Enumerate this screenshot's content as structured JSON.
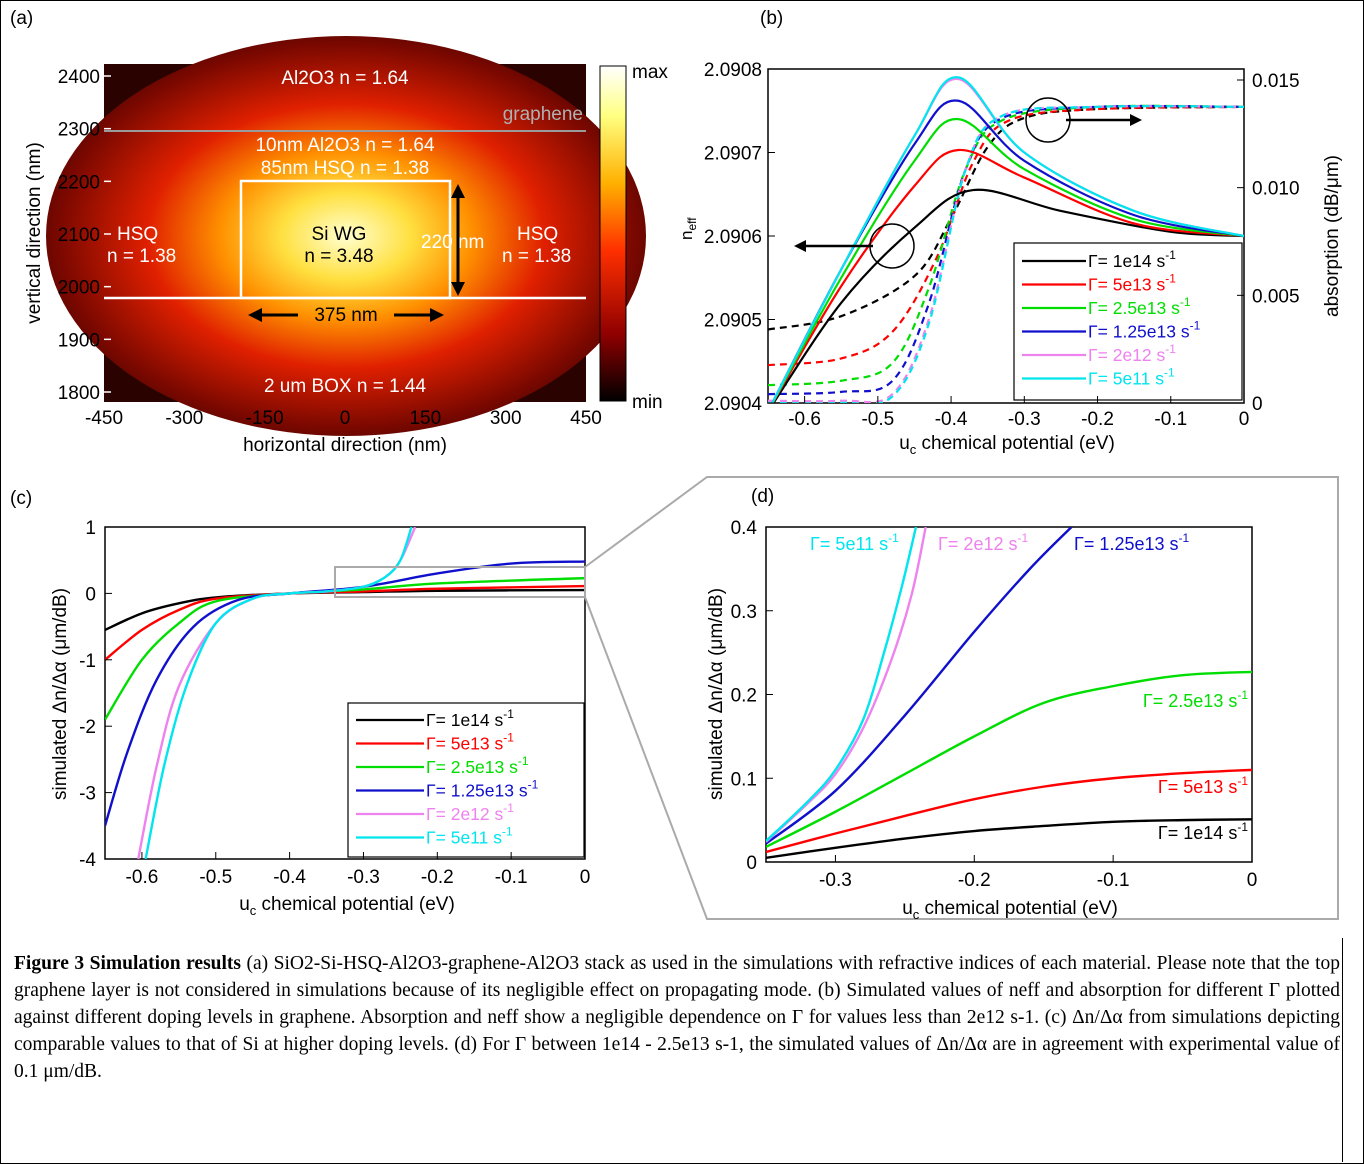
{
  "panels": {
    "a": {
      "tag": "(a)",
      "ylabel": "vertical direction (nm)",
      "xlabel": "horizontal direction (nm)",
      "yticks": [
        "2400",
        "2300",
        "2200",
        "2100",
        "2000",
        "1900",
        "1800"
      ],
      "xticks": [
        "-450",
        "-300",
        "-150",
        "0",
        "150",
        "300",
        "450"
      ],
      "colorbar": {
        "max": "max",
        "min": "min"
      },
      "labels": {
        "top_al2o3": "Al2O3 n = 1.64",
        "graphene": "graphene",
        "al2o3_10nm": "10nm Al2O3 n = 1.64",
        "hsq_85nm": "85nm HSQ n = 1.38",
        "hsq_left_1": "HSQ",
        "hsq_left_2": "n = 1.38",
        "hsq_right_1": "HSQ",
        "hsq_right_2": "n = 1.38",
        "si_wg_1": "Si WG",
        "si_wg_2": "n = 3.48",
        "height": "220 nm",
        "width": "375 nm",
        "box": "2 um BOX n = 1.44"
      }
    },
    "b": {
      "tag": "(b)",
      "yleft_label": "neff",
      "yright_label": "absorption (dB/μm)",
      "xlabel": "uc chemical potential (eV)",
      "yleft_ticks": [
        "2.0908",
        "2.0907",
        "2.0906",
        "2.0905",
        "2.0904"
      ],
      "yright_ticks": [
        "0.015",
        "0.010",
        "0.005",
        "0"
      ],
      "xticks": [
        "-0.6",
        "-0.5",
        "-0.4",
        "-0.3",
        "-0.2",
        "-0.1",
        "0"
      ]
    },
    "c": {
      "tag": "(c)",
      "ylabel": "simulated Δn/Δα (μm/dB)",
      "xlabel": "uc chemical potential (eV)",
      "yticks": [
        "1",
        "0",
        "-1",
        "-2",
        "-3",
        "-4"
      ],
      "xticks": [
        "-0.6",
        "-0.5",
        "-0.4",
        "-0.3",
        "-0.2",
        "-0.1",
        "0"
      ]
    },
    "d": {
      "tag": "(d)",
      "ylabel": "simulated Δn/Δα (μm/dB)",
      "xlabel": "uc chemical potential (eV)",
      "yticks": [
        "0.4",
        "0.3",
        "0.2",
        "0.1",
        "0"
      ],
      "xticks": [
        "-0.3",
        "-0.2",
        "-0.1",
        "0"
      ]
    }
  },
  "legend": [
    {
      "label": "Γ= 1e14 s-1",
      "color": "#000000"
    },
    {
      "label": "Γ= 5e13 s-1",
      "color": "#ff0000"
    },
    {
      "label": "Γ= 2.5e13 s-1",
      "color": "#00dd00"
    },
    {
      "label": "Γ= 1.25e13 s-1",
      "color": "#1010cc"
    },
    {
      "label": "Γ= 2e12 s-1",
      "color": "#ee82ee"
    },
    {
      "label": "Γ= 5e11 s-1",
      "color": "#00e5ee"
    }
  ],
  "chart_data": [
    {
      "type": "line",
      "panel": "b",
      "series": [
        {
          "name": "Γ= 1e14 s-1",
          "neff": [
            [
              -0.65,
              2.09039
            ],
            [
              -0.55,
              2.09052
            ],
            [
              -0.45,
              2.09061
            ],
            [
              -0.37,
              2.090655
            ],
            [
              -0.25,
              2.09063
            ],
            [
              -0.1,
              2.090605
            ],
            [
              0,
              2.0906
            ]
          ],
          "absorption": [
            [
              -0.65,
              0.0033
            ],
            [
              -0.55,
              0.0039
            ],
            [
              -0.45,
              0.0057
            ],
            [
              -0.4,
              0.0083
            ],
            [
              -0.35,
              0.0115
            ],
            [
              -0.3,
              0.0128
            ],
            [
              -0.2,
              0.0132
            ],
            [
              0,
              0.0133
            ]
          ]
        },
        {
          "name": "Γ= 5e13 s-1",
          "neff": [
            [
              -0.65,
              2.09039
            ],
            [
              -0.55,
              2.09054
            ],
            [
              -0.45,
              2.09066
            ],
            [
              -0.39,
              2.090703
            ],
            [
              -0.3,
              2.09067
            ],
            [
              -0.15,
              2.090615
            ],
            [
              0,
              2.0906
            ]
          ],
          "absorption": [
            [
              -0.65,
              0.0017
            ],
            [
              -0.55,
              0.002
            ],
            [
              -0.48,
              0.0032
            ],
            [
              -0.42,
              0.0065
            ],
            [
              -0.37,
              0.0108
            ],
            [
              -0.32,
              0.0127
            ],
            [
              -0.2,
              0.0132
            ],
            [
              0,
              0.0133
            ]
          ]
        },
        {
          "name": "Γ= 2.5e13 s-1",
          "neff": [
            [
              -0.65,
              2.09039
            ],
            [
              -0.55,
              2.09055
            ],
            [
              -0.45,
              2.09069
            ],
            [
              -0.39,
              2.09074
            ],
            [
              -0.3,
              2.09068
            ],
            [
              -0.15,
              2.09062
            ],
            [
              0,
              2.0906
            ]
          ],
          "absorption": [
            [
              -0.65,
              0.0008
            ],
            [
              -0.55,
              0.001
            ],
            [
              -0.48,
              0.0018
            ],
            [
              -0.43,
              0.0052
            ],
            [
              -0.38,
              0.0105
            ],
            [
              -0.33,
              0.0127
            ],
            [
              -0.2,
              0.0133
            ],
            [
              0,
              0.0133
            ]
          ]
        },
        {
          "name": "Γ= 1.25e13 s-1",
          "neff": [
            [
              -0.65,
              2.09039
            ],
            [
              -0.55,
              2.09056
            ],
            [
              -0.45,
              2.09071
            ],
            [
              -0.39,
              2.090762
            ],
            [
              -0.3,
              2.09069
            ],
            [
              -0.15,
              2.090625
            ],
            [
              0,
              2.0906
            ]
          ],
          "absorption": [
            [
              -0.65,
              0.0004
            ],
            [
              -0.55,
              0.0005
            ],
            [
              -0.48,
              0.001
            ],
            [
              -0.43,
              0.0045
            ],
            [
              -0.38,
              0.0105
            ],
            [
              -0.33,
              0.0128
            ],
            [
              -0.2,
              0.0133
            ],
            [
              0,
              0.0133
            ]
          ]
        },
        {
          "name": "Γ= 2e12 s-1",
          "neff": [
            [
              -0.65,
              2.09039
            ],
            [
              -0.55,
              2.09056
            ],
            [
              -0.45,
              2.09072
            ],
            [
              -0.39,
              2.090788
            ],
            [
              -0.3,
              2.0907
            ],
            [
              -0.15,
              2.09063
            ],
            [
              0,
              2.0906
            ]
          ],
          "absorption": [
            [
              -0.65,
              0.0001
            ],
            [
              -0.55,
              0.0001
            ],
            [
              -0.48,
              0.0004
            ],
            [
              -0.43,
              0.0038
            ],
            [
              -0.38,
              0.0105
            ],
            [
              -0.33,
              0.0129
            ],
            [
              -0.2,
              0.0133
            ],
            [
              0,
              0.0133
            ]
          ]
        },
        {
          "name": "Γ= 5e11 s-1",
          "neff": [
            [
              -0.65,
              2.09039
            ],
            [
              -0.55,
              2.09056
            ],
            [
              -0.45,
              2.09072
            ],
            [
              -0.39,
              2.09079
            ],
            [
              -0.3,
              2.0907
            ],
            [
              -0.15,
              2.09063
            ],
            [
              0,
              2.0906
            ]
          ],
          "absorption": [
            [
              -0.65,
              0.0
            ],
            [
              -0.55,
              0.0
            ],
            [
              -0.48,
              0.0003
            ],
            [
              -0.43,
              0.0036
            ],
            [
              -0.38,
              0.0105
            ],
            [
              -0.33,
              0.0129
            ],
            [
              -0.2,
              0.0133
            ],
            [
              0,
              0.0133
            ]
          ]
        }
      ],
      "xlim": [
        -0.65,
        0
      ],
      "ylim_left": [
        2.0904,
        2.0908
      ],
      "ylim_right": [
        0,
        0.015
      ]
    },
    {
      "type": "line",
      "panel": "c",
      "series": [
        {
          "name": "Γ= 1e14 s-1",
          "points": [
            [
              -0.65,
              -0.55
            ],
            [
              -0.6,
              -0.3
            ],
            [
              -0.55,
              -0.15
            ],
            [
              -0.5,
              -0.06
            ],
            [
              -0.4,
              0
            ],
            [
              -0.3,
              0.02
            ],
            [
              -0.2,
              0.04
            ],
            [
              0,
              0.05
            ]
          ]
        },
        {
          "name": "Γ= 5e13 s-1",
          "points": [
            [
              -0.65,
              -1.0
            ],
            [
              -0.6,
              -0.55
            ],
            [
              -0.55,
              -0.25
            ],
            [
              -0.5,
              -0.08
            ],
            [
              -0.4,
              0
            ],
            [
              -0.3,
              0.03
            ],
            [
              -0.2,
              0.07
            ],
            [
              0,
              0.11
            ]
          ]
        },
        {
          "name": "Γ= 2.5e13 s-1",
          "points": [
            [
              -0.65,
              -1.9
            ],
            [
              -0.6,
              -1.0
            ],
            [
              -0.55,
              -0.45
            ],
            [
              -0.5,
              -0.12
            ],
            [
              -0.4,
              0
            ],
            [
              -0.3,
              0.06
            ],
            [
              -0.2,
              0.15
            ],
            [
              0,
              0.23
            ]
          ]
        },
        {
          "name": "Γ= 1.25e13 s-1",
          "points": [
            [
              -0.65,
              -3.5
            ],
            [
              -0.62,
              -2.4
            ],
            [
              -0.58,
              -1.3
            ],
            [
              -0.53,
              -0.5
            ],
            [
              -0.47,
              -0.1
            ],
            [
              -0.4,
              0
            ],
            [
              -0.3,
              0.1
            ],
            [
              -0.2,
              0.3
            ],
            [
              -0.1,
              0.45
            ],
            [
              0,
              0.48
            ]
          ]
        },
        {
          "name": "Γ= 2e12 s-1",
          "points": [
            [
              -0.605,
              -4.0
            ],
            [
              -0.58,
              -2.6
            ],
            [
              -0.55,
              -1.4
            ],
            [
              -0.5,
              -0.45
            ],
            [
              -0.45,
              -0.08
            ],
            [
              -0.4,
              0
            ],
            [
              -0.35,
              0.03
            ],
            [
              -0.3,
              0.1
            ],
            [
              -0.27,
              0.25
            ],
            [
              -0.25,
              0.5
            ],
            [
              -0.23,
              1.0
            ]
          ]
        },
        {
          "name": "Γ= 5e11 s-1",
          "points": [
            [
              -0.595,
              -4.0
            ],
            [
              -0.57,
              -2.6
            ],
            [
              -0.54,
              -1.4
            ],
            [
              -0.5,
              -0.45
            ],
            [
              -0.45,
              -0.08
            ],
            [
              -0.4,
              0
            ],
            [
              -0.35,
              0.03
            ],
            [
              -0.3,
              0.1
            ],
            [
              -0.27,
              0.25
            ],
            [
              -0.25,
              0.5
            ],
            [
              -0.235,
              1.0
            ]
          ]
        }
      ],
      "xlim": [
        -0.65,
        0
      ],
      "ylim": [
        -4,
        1
      ]
    },
    {
      "type": "line",
      "panel": "d",
      "series": [
        {
          "name": "Γ= 1e14 s-1",
          "points": [
            [
              -0.35,
              0.005
            ],
            [
              -0.3,
              0.017
            ],
            [
              -0.25,
              0.028
            ],
            [
              -0.2,
              0.037
            ],
            [
              -0.15,
              0.043
            ],
            [
              -0.1,
              0.048
            ],
            [
              -0.05,
              0.05
            ],
            [
              0,
              0.051
            ]
          ]
        },
        {
          "name": "Γ= 5e13 s-1",
          "points": [
            [
              -0.35,
              0.012
            ],
            [
              -0.3,
              0.034
            ],
            [
              -0.25,
              0.055
            ],
            [
              -0.2,
              0.075
            ],
            [
              -0.15,
              0.09
            ],
            [
              -0.1,
              0.1
            ],
            [
              -0.05,
              0.106
            ],
            [
              0,
              0.11
            ]
          ]
        },
        {
          "name": "Γ= 2.5e13 s-1",
          "points": [
            [
              -0.35,
              0.018
            ],
            [
              -0.3,
              0.06
            ],
            [
              -0.25,
              0.105
            ],
            [
              -0.2,
              0.15
            ],
            [
              -0.15,
              0.19
            ],
            [
              -0.1,
              0.21
            ],
            [
              -0.05,
              0.223
            ],
            [
              0,
              0.227
            ]
          ]
        },
        {
          "name": "Γ= 1.25e13 s-1",
          "points": [
            [
              -0.35,
              0.022
            ],
            [
              -0.3,
              0.085
            ],
            [
              -0.25,
              0.175
            ],
            [
              -0.2,
              0.275
            ],
            [
              -0.16,
              0.35
            ],
            [
              -0.13,
              0.4
            ]
          ]
        },
        {
          "name": "Γ= 2e12 s-1",
          "points": [
            [
              -0.35,
              0.024
            ],
            [
              -0.32,
              0.07
            ],
            [
              -0.3,
              0.105
            ],
            [
              -0.28,
              0.16
            ],
            [
              -0.26,
              0.24
            ],
            [
              -0.245,
              0.32
            ],
            [
              -0.235,
              0.4
            ]
          ]
        },
        {
          "name": "Γ= 5e11 s-1",
          "points": [
            [
              -0.35,
              0.025
            ],
            [
              -0.32,
              0.072
            ],
            [
              -0.3,
              0.11
            ],
            [
              -0.28,
              0.17
            ],
            [
              -0.265,
              0.25
            ],
            [
              -0.252,
              0.33
            ],
            [
              -0.242,
              0.4
            ]
          ]
        }
      ],
      "legend_labels": [
        "Γ= 5e11 s-1",
        "Γ= 2e12 s-1",
        "Γ= 1.25e13 s-1",
        "Γ= 2.5e13 s-1",
        "Γ= 5e13 s-1",
        "Γ= 1e14 s-1"
      ],
      "xlim": [
        -0.35,
        0
      ],
      "ylim": [
        0,
        0.4
      ]
    }
  ],
  "caption": {
    "title": "Figure 3 Simulation results",
    "text": " (a) SiO2-Si-HSQ-Al2O3-graphene-Al2O3 stack as used in the simulations with refractive indices of each material. Please note that the top graphene layer is not considered in simulations because of its negligible effect on propagating mode. (b) Simulated values of neff and absorption for different Γ plotted against different doping levels in graphene. Absorption and neff show a negligible dependence on Γ for values less than 2e12 s-1. (c) Δn/Δα from simulations depicting comparable values to that of Si at higher doping levels. (d) For Γ between 1e14 - 2.5e13 s-1, the simulated values of Δn/Δα are in agreement with experimental value of 0.1 μm/dB."
  }
}
